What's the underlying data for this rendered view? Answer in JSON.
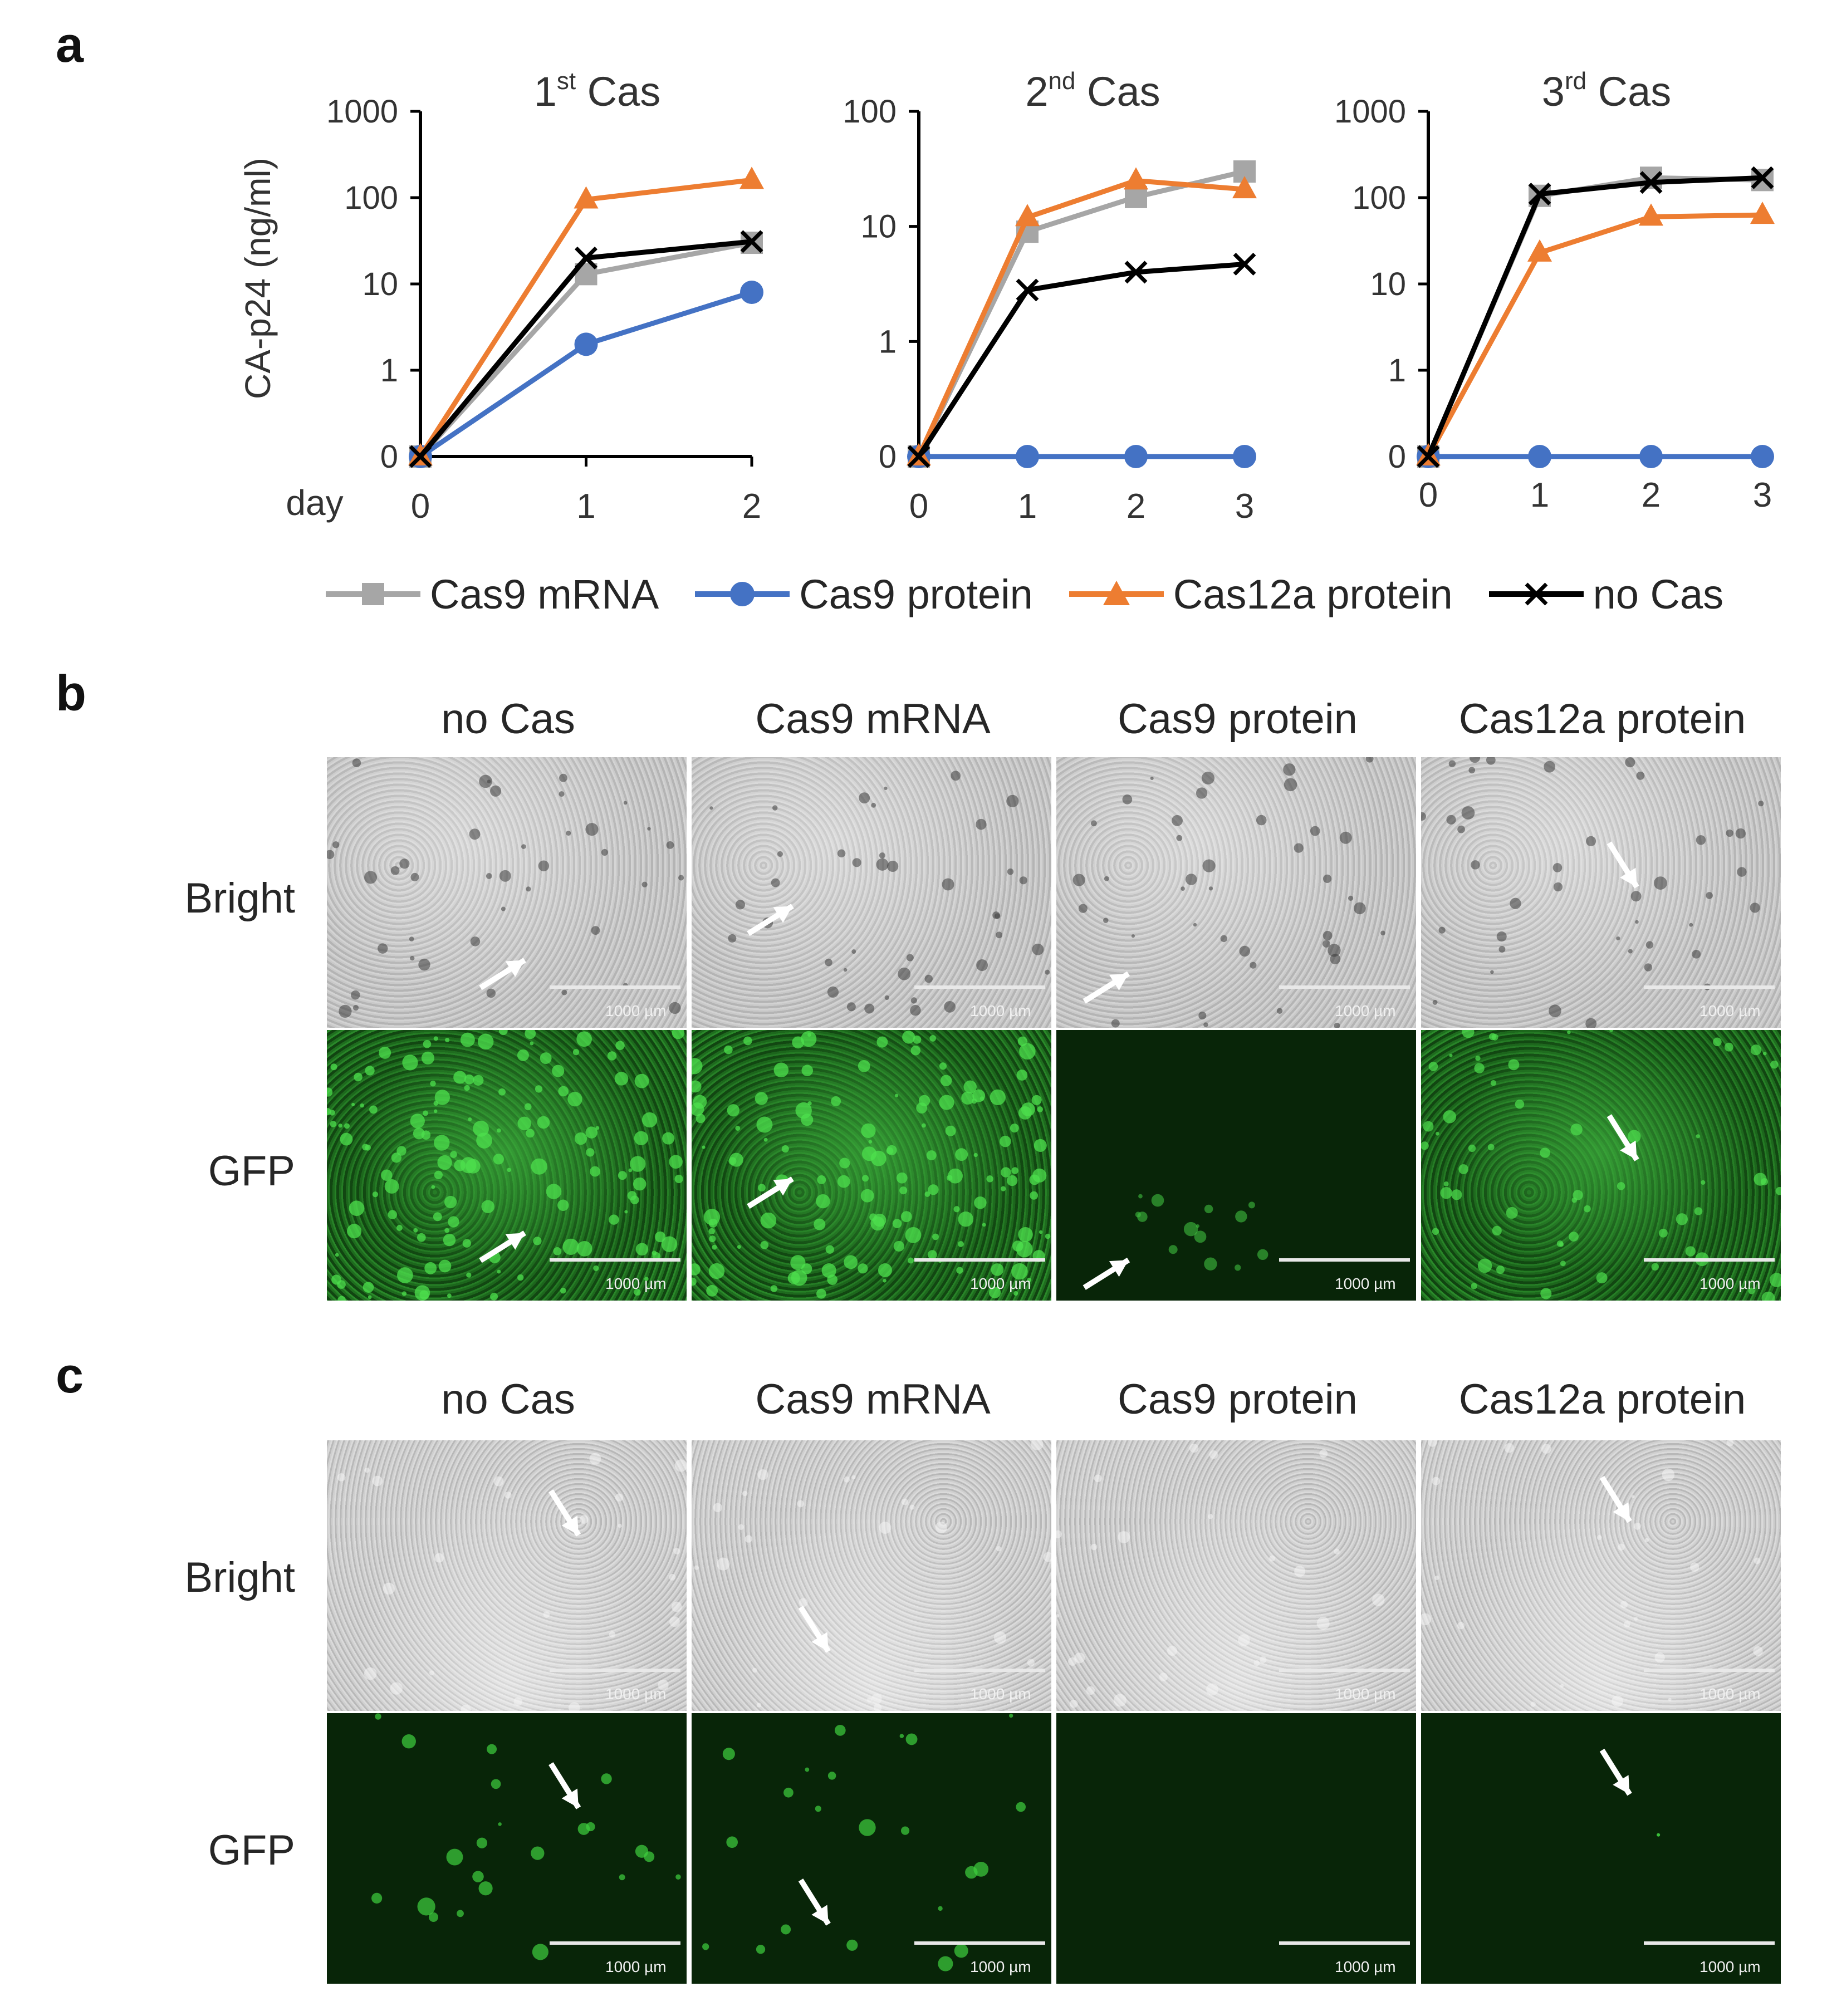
{
  "panels": {
    "a": "a",
    "b": "b",
    "c": "c"
  },
  "chart_data": [
    {
      "type": "line",
      "title": "1st Cas",
      "title_base": "1",
      "title_sup": "st",
      "title_rest": " Cas",
      "ylabel": "CA-p24 (ng/ml)",
      "xlabel": "day",
      "y_scale": "log (0 plotted at bottom)",
      "y_ticks": [
        "1000",
        "100",
        "10",
        "1",
        "0"
      ],
      "x": [
        0,
        1,
        2
      ],
      "x_ticks": [
        "0",
        "1",
        "2"
      ],
      "series": [
        {
          "name": "Cas9 mRNA",
          "values": [
            0,
            13,
            30
          ]
        },
        {
          "name": "Cas9 protein",
          "values": [
            0,
            2,
            8
          ]
        },
        {
          "name": "Cas12a protein",
          "values": [
            0,
            95,
            160
          ]
        },
        {
          "name": "no Cas",
          "values": [
            0,
            20,
            31
          ]
        }
      ]
    },
    {
      "type": "line",
      "title": "2nd Cas",
      "title_base": "2",
      "title_sup": "nd",
      "title_rest": " Cas",
      "y_scale": "log (0 plotted at bottom)",
      "y_ticks": [
        "100",
        "10",
        "1",
        "0"
      ],
      "x": [
        0,
        1,
        2,
        3
      ],
      "x_ticks": [
        "0",
        "1",
        "2",
        "3"
      ],
      "series": [
        {
          "name": "Cas9 mRNA",
          "values": [
            0,
            9,
            18,
            30
          ]
        },
        {
          "name": "Cas9 protein",
          "values": [
            0,
            0,
            0,
            0
          ]
        },
        {
          "name": "Cas12a protein",
          "values": [
            0,
            12,
            25,
            21
          ]
        },
        {
          "name": "no Cas",
          "values": [
            0,
            2.8,
            4,
            4.7
          ]
        }
      ]
    },
    {
      "type": "line",
      "title": "3rd Cas",
      "title_base": "3",
      "title_sup": "rd",
      "title_rest": " Cas",
      "y_scale": "log (0 plotted at bottom)",
      "y_ticks": [
        "1000",
        "100",
        "10",
        "1",
        "0"
      ],
      "x": [
        0,
        1,
        2,
        3
      ],
      "x_ticks": [
        "0",
        "1",
        "2",
        "3"
      ],
      "series": [
        {
          "name": "Cas9 mRNA",
          "values": [
            0,
            105,
            170,
            160
          ]
        },
        {
          "name": "Cas9 protein",
          "values": [
            0,
            0,
            0,
            0
          ]
        },
        {
          "name": "Cas12a protein",
          "values": [
            0,
            23,
            60,
            63
          ]
        },
        {
          "name": "no Cas",
          "values": [
            0,
            110,
            150,
            170
          ]
        }
      ]
    }
  ],
  "legend": [
    {
      "label": "Cas9 mRNA",
      "color": "#a6a6a6",
      "marker": "square"
    },
    {
      "label": "Cas9 protein",
      "color": "#4472c4",
      "marker": "circle"
    },
    {
      "label": "Cas12a protein",
      "color": "#ed7d31",
      "marker": "triangle"
    },
    {
      "label": "no Cas",
      "color": "#000000",
      "marker": "x"
    }
  ],
  "micrographs": {
    "columns": [
      "no Cas",
      "Cas9 mRNA",
      "Cas9 protein",
      "Cas12a protein"
    ],
    "rows": [
      "Bright",
      "GFP"
    ],
    "scale_bar": "1000  µm"
  }
}
